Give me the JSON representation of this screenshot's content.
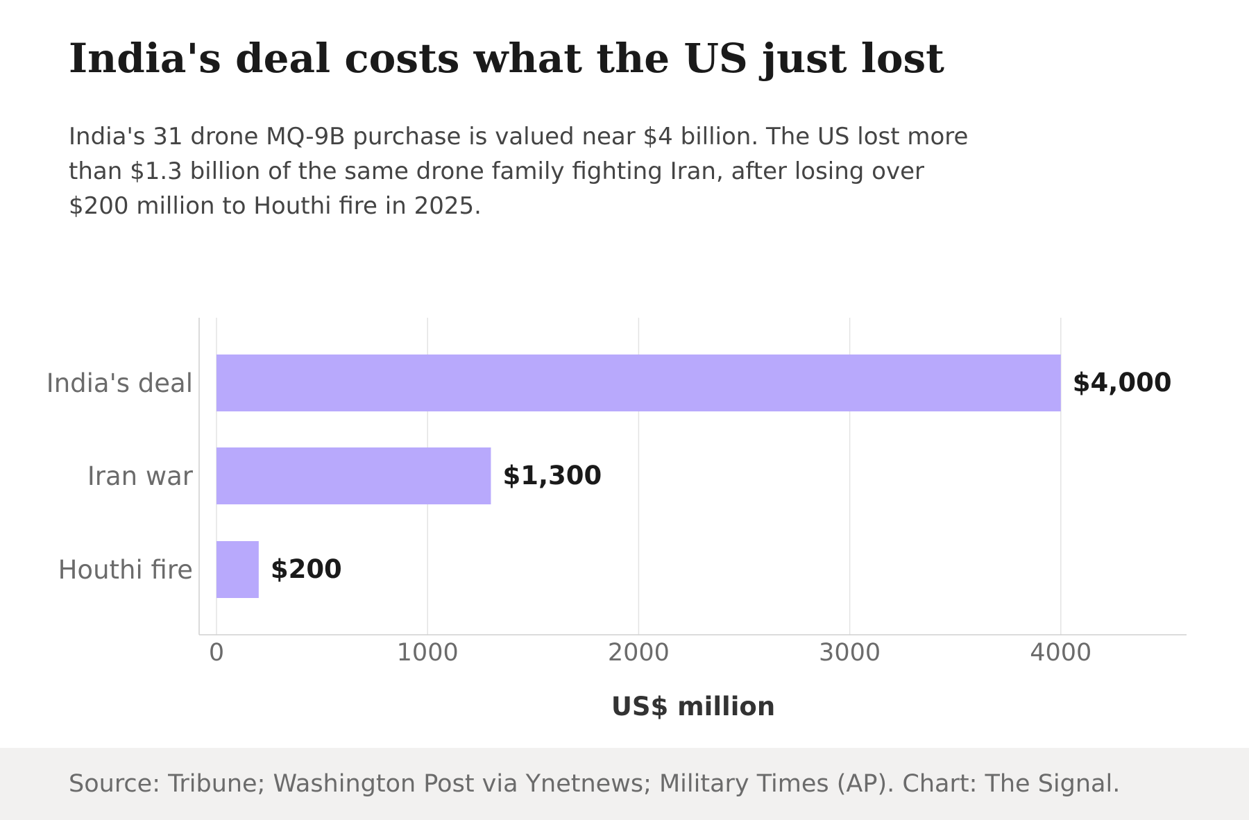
{
  "header": {
    "title": "India's deal costs what the US just lost",
    "subtitle": "India's 31 drone MQ-9B purchase is valued near $4 billion. The US lost more than $1.3 billion of the same drone family fighting Iran, after losing over $200 million to Houthi fire in 2025."
  },
  "footer": {
    "source": "Source: Tribune; Washington Post via Ynetnews; Military Times (AP). Chart: The Signal."
  },
  "chart_data": {
    "type": "bar",
    "orientation": "horizontal",
    "categories": [
      "India's deal",
      "Iran war",
      "Houthi fire"
    ],
    "values": [
      4000,
      1300,
      200
    ],
    "value_labels": [
      "$4,000",
      "$1,300",
      "$200"
    ],
    "xlabel": "US$ million",
    "ylabel": "",
    "xlim": [
      0,
      4600
    ],
    "xticks": [
      0,
      1000,
      2000,
      3000,
      4000
    ],
    "xtick_labels": [
      "0",
      "1000",
      "2000",
      "3000",
      "4000"
    ],
    "grid": "vertical",
    "bar_color": "#b8a9fc"
  }
}
